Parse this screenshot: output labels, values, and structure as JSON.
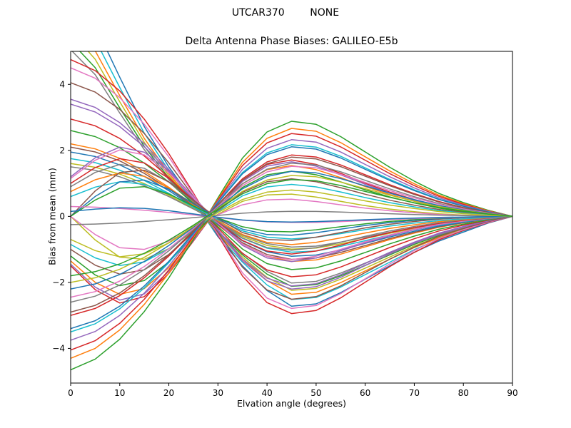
{
  "suptitle": "UTCAR370        NONE",
  "chart_data": {
    "type": "line",
    "title": "Delta Antenna Phase Biases: GALILEO-E5b",
    "xlabel": "Elvation angle (degrees)",
    "ylabel": "Bias from mean (mm)",
    "xlim": [
      0,
      90
    ],
    "ylim": [
      -5.05,
      5.0
    ],
    "x_ticks": [
      0,
      10,
      20,
      30,
      40,
      50,
      60,
      70,
      80,
      90
    ],
    "y_ticks": [
      -4,
      -2,
      0,
      2,
      4
    ],
    "grid": false,
    "legend": "none",
    "line_width": 1.5,
    "description": "Approximately 53 unlabeled satellite/station delta phase-bias curves; each series y-values = scale * basis shape sampled at x",
    "x": [
      0,
      5,
      10,
      15,
      20,
      25,
      30,
      35,
      40,
      45,
      50,
      55,
      60,
      65,
      70,
      75,
      80,
      85,
      90
    ],
    "bases": {
      "S": [
        1.0,
        0.93,
        0.8,
        0.62,
        0.4,
        0.15,
        -0.12,
        -0.38,
        -0.55,
        -0.62,
        -0.6,
        -0.52,
        -0.42,
        -0.32,
        -0.23,
        -0.15,
        -0.09,
        -0.04,
        0.0
      ],
      "P": [
        1.0,
        0.85,
        0.62,
        0.4,
        0.22,
        0.07,
        -0.09,
        -0.22,
        -0.33,
        -0.4,
        -0.39,
        -0.34,
        -0.28,
        -0.22,
        -0.16,
        -0.11,
        -0.07,
        -0.03,
        0.0
      ],
      "W": [
        0.0,
        0.55,
        0.95,
        1.0,
        0.75,
        0.35,
        -0.05,
        -0.35,
        -0.5,
        -0.52,
        -0.45,
        -0.35,
        -0.25,
        -0.17,
        -0.11,
        -0.06,
        -0.03,
        -0.01,
        0.0
      ],
      "M": [
        1.0,
        1.48,
        1.75,
        1.62,
        1.15,
        0.5,
        -0.17,
        -0.73,
        -1.05,
        -1.14,
        -1.05,
        -0.87,
        -0.67,
        -0.49,
        -0.34,
        -0.21,
        -0.12,
        -0.05,
        0.0
      ]
    },
    "palette": {
      "blue": "#1f77b4",
      "orange": "#ff7f0e",
      "green": "#2ca02c",
      "red": "#d62728",
      "purple": "#9467bd",
      "brown": "#8c564b",
      "pink": "#e377c2",
      "gray": "#7f7f7f",
      "olive": "#bcbd22",
      "cyan": "#17becf"
    },
    "series": [
      {
        "color": "#1f77b4",
        "basis": "P",
        "scale": 6.8
      },
      {
        "color": "#17becf",
        "basis": "P",
        "scale": 6.3
      },
      {
        "color": "#ff7f0e",
        "basis": "P",
        "scale": 5.9
      },
      {
        "color": "#bcbd22",
        "basis": "P",
        "scale": 5.6
      },
      {
        "color": "#2ca02c",
        "basis": "P",
        "scale": 5.3
      },
      {
        "color": "#7f7f7f",
        "basis": "P",
        "scale": 5.05
      },
      {
        "color": "#d62728",
        "basis": "S",
        "scale": 4.75
      },
      {
        "color": "#e377c2",
        "basis": "S",
        "scale": 4.5
      },
      {
        "color": "#8c564b",
        "basis": "S",
        "scale": 4.05
      },
      {
        "color": "#9467bd",
        "basis": "S",
        "scale": 3.55
      },
      {
        "color": "#9467bd",
        "basis": "S",
        "scale": 3.4
      },
      {
        "color": "#d62728",
        "basis": "S",
        "scale": 2.95
      },
      {
        "color": "#2ca02c",
        "basis": "S",
        "scale": 2.6
      },
      {
        "color": "#ff7f0e",
        "basis": "S",
        "scale": 2.2
      },
      {
        "color": "#8c564b",
        "basis": "S",
        "scale": 2.1
      },
      {
        "color": "#1f77b4",
        "basis": "S",
        "scale": 1.95
      },
      {
        "color": "#17becf",
        "basis": "S",
        "scale": 1.75
      },
      {
        "color": "#bcbd22",
        "basis": "S",
        "scale": 1.6
      },
      {
        "color": "#7f7f7f",
        "basis": "S",
        "scale": 1.5
      },
      {
        "color": "#9467bd",
        "basis": "M",
        "scale": 1.2
      },
      {
        "color": "#e377c2",
        "basis": "M",
        "scale": 1.15
      },
      {
        "color": "#d62728",
        "basis": "M",
        "scale": 1.0
      },
      {
        "color": "#7f7f7f",
        "basis": "M",
        "scale": 0.9
      },
      {
        "color": "#ff7f0e",
        "basis": "M",
        "scale": 0.75
      },
      {
        "color": "#17becf",
        "basis": "M",
        "scale": 0.6
      },
      {
        "color": "#8c564b",
        "basis": "W",
        "scale": 1.4
      },
      {
        "color": "#1f77b4",
        "basis": "W",
        "scale": 1.1
      },
      {
        "color": "#2ca02c",
        "basis": "W",
        "scale": 0.9
      },
      {
        "color": "#bcbd22",
        "basis": "W",
        "scale": -1.3
      },
      {
        "color": "#e377c2",
        "basis": "W",
        "scale": -1.0
      },
      {
        "color": "#e377c2",
        "basis": "S",
        "scale": 0.3
      },
      {
        "color": "#7f7f7f",
        "basis": "S",
        "scale": -0.25
      },
      {
        "color": "#1f77b4",
        "basis": "M",
        "scale": 0.15
      },
      {
        "color": "#d62728",
        "basis": "M",
        "scale": -1.5
      },
      {
        "color": "#9467bd",
        "basis": "M",
        "scale": -1.45
      },
      {
        "color": "#ff7f0e",
        "basis": "M",
        "scale": -1.35
      },
      {
        "color": "#2ca02c",
        "basis": "M",
        "scale": -1.2
      },
      {
        "color": "#8c564b",
        "basis": "M",
        "scale": -1.0
      },
      {
        "color": "#17becf",
        "basis": "M",
        "scale": -0.85
      },
      {
        "color": "#bcbd22",
        "basis": "M",
        "scale": -0.7
      },
      {
        "color": "#2ca02c",
        "basis": "S",
        "scale": -4.65
      },
      {
        "color": "#ff7f0e",
        "basis": "S",
        "scale": -4.3
      },
      {
        "color": "#d62728",
        "basis": "S",
        "scale": -4.05
      },
      {
        "color": "#9467bd",
        "basis": "S",
        "scale": -3.75
      },
      {
        "color": "#17becf",
        "basis": "S",
        "scale": -3.5
      },
      {
        "color": "#1f77b4",
        "basis": "S",
        "scale": -3.4
      },
      {
        "color": "#d62728",
        "basis": "S",
        "scale": -3.0
      },
      {
        "color": "#8c564b",
        "basis": "S",
        "scale": -2.9
      },
      {
        "color": "#7f7f7f",
        "basis": "S",
        "scale": -2.6
      },
      {
        "color": "#e377c2",
        "basis": "S",
        "scale": -2.45
      },
      {
        "color": "#1f77b4",
        "basis": "S",
        "scale": -2.2
      },
      {
        "color": "#bcbd22",
        "basis": "S",
        "scale": -2.0
      },
      {
        "color": "#2ca02c",
        "basis": "S",
        "scale": -1.8
      }
    ]
  }
}
